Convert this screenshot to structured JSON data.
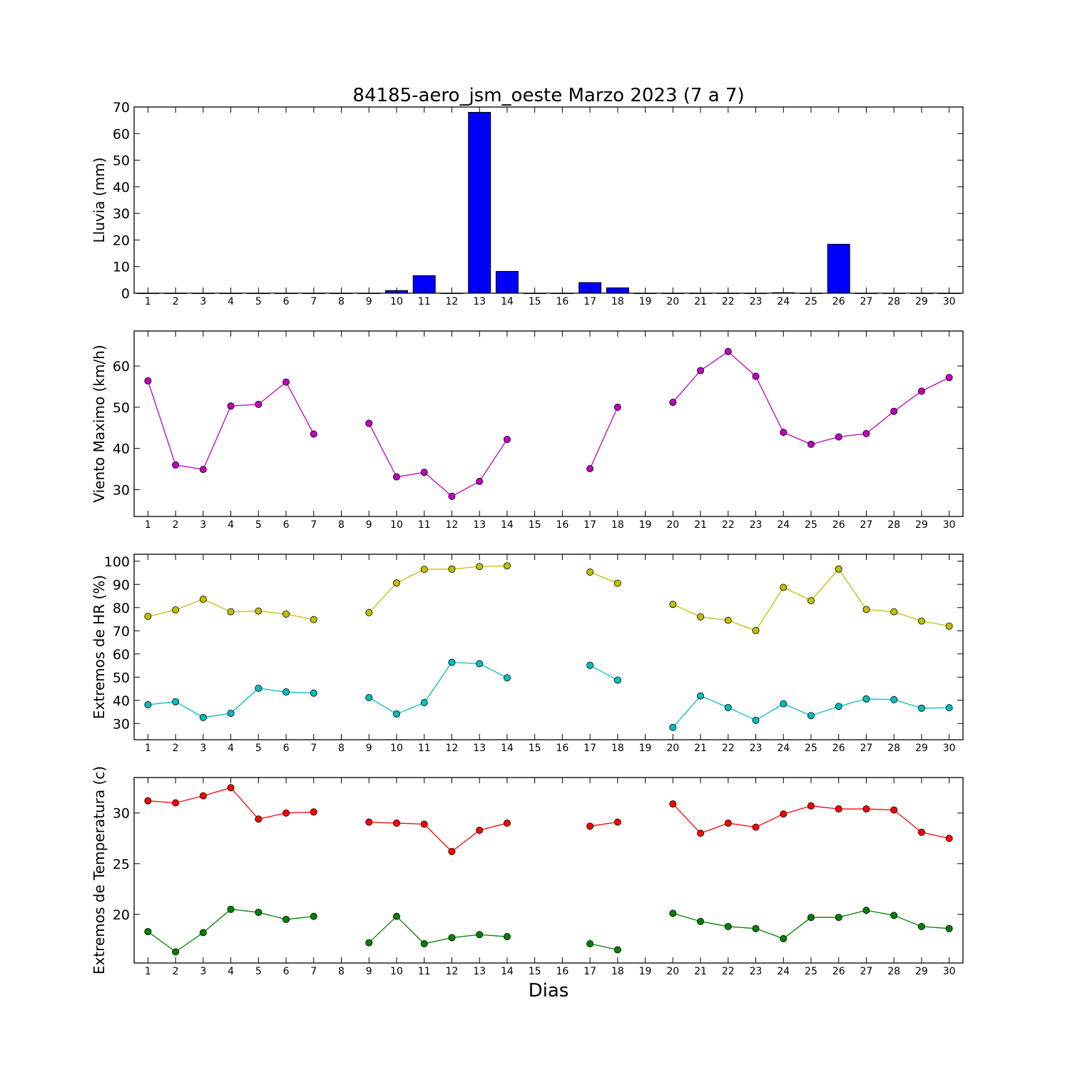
{
  "title": "84185-aero_jsm_oeste Marzo 2023  (7 a 7)",
  "xlabel": "Dias",
  "chart_data": [
    {
      "type": "bar",
      "ylabel": "Lluvia (mm)",
      "ylim": [
        0,
        70
      ],
      "yticks": [
        0,
        10,
        20,
        30,
        40,
        50,
        60,
        70
      ],
      "x": [
        1,
        2,
        3,
        4,
        5,
        6,
        7,
        8,
        9,
        10,
        11,
        12,
        13,
        14,
        15,
        16,
        17,
        18,
        19,
        20,
        21,
        22,
        23,
        24,
        25,
        26,
        27,
        28,
        29,
        30
      ],
      "series": [
        {
          "color": "#0000ff",
          "values": [
            0,
            0,
            0,
            0,
            0,
            0,
            0,
            0,
            0,
            1.0,
            6.6,
            0,
            68.0,
            8.2,
            0,
            0,
            4.0,
            2.0,
            0,
            0,
            0,
            0,
            0,
            0.2,
            0,
            18.4,
            0,
            0,
            0,
            0
          ]
        }
      ]
    },
    {
      "type": "line",
      "ylabel": "Viento Maximo (km/h)",
      "ylim": [
        23.5,
        68.5
      ],
      "yticks": [
        30,
        40,
        50,
        60
      ],
      "x": [
        1,
        2,
        3,
        4,
        5,
        6,
        7,
        8,
        9,
        10,
        11,
        12,
        13,
        14,
        15,
        16,
        17,
        18,
        19,
        20,
        21,
        22,
        23,
        24,
        25,
        26,
        27,
        28,
        29,
        30
      ],
      "series": [
        {
          "color": "#bf00bf",
          "values": [
            56.4,
            36.0,
            34.9,
            50.3,
            50.7,
            56.1,
            43.5,
            null,
            46.1,
            33.1,
            34.2,
            28.4,
            32.0,
            42.2,
            null,
            null,
            35.1,
            50.0,
            null,
            51.2,
            58.9,
            63.5,
            57.5,
            43.9,
            41.0,
            42.8,
            43.6,
            49.0,
            53.9,
            57.2
          ]
        }
      ]
    },
    {
      "type": "line",
      "ylabel": "Extremos de HR (%)",
      "ylim": [
        23,
        103
      ],
      "yticks": [
        30,
        40,
        50,
        60,
        70,
        80,
        90,
        100
      ],
      "x": [
        1,
        2,
        3,
        4,
        5,
        6,
        7,
        8,
        9,
        10,
        11,
        12,
        13,
        14,
        15,
        16,
        17,
        18,
        19,
        20,
        21,
        22,
        23,
        24,
        25,
        26,
        27,
        28,
        29,
        30
      ],
      "series": [
        {
          "color": "#bfbf00",
          "values": [
            76.2,
            79.0,
            83.6,
            78.2,
            78.5,
            77.2,
            74.8,
            null,
            77.8,
            90.6,
            96.5,
            96.6,
            97.7,
            98.0,
            null,
            null,
            95.3,
            90.5,
            null,
            81.4,
            76.0,
            74.5,
            70.1,
            88.7,
            83.0,
            96.6,
            79.2,
            78.2,
            74.2,
            72.0
          ]
        },
        {
          "color": "#00bfbf",
          "values": [
            38.1,
            39.4,
            32.6,
            34.4,
            45.2,
            43.6,
            43.1,
            null,
            41.2,
            34.1,
            39.0,
            56.4,
            55.8,
            49.7,
            null,
            null,
            55.1,
            48.7,
            null,
            28.3,
            41.9,
            36.9,
            31.4,
            38.5,
            33.4,
            37.4,
            40.6,
            40.3,
            36.6,
            36.8
          ]
        }
      ]
    },
    {
      "type": "line",
      "ylabel": "Extremos de Temperatura (c)",
      "ylim": [
        15.2,
        33.5
      ],
      "yticks": [
        20,
        25,
        30
      ],
      "x": [
        1,
        2,
        3,
        4,
        5,
        6,
        7,
        8,
        9,
        10,
        11,
        12,
        13,
        14,
        15,
        16,
        17,
        18,
        19,
        20,
        21,
        22,
        23,
        24,
        25,
        26,
        27,
        28,
        29,
        30
      ],
      "series": [
        {
          "color": "#ff0000",
          "values": [
            31.2,
            31.0,
            31.7,
            32.5,
            29.4,
            30.0,
            30.1,
            null,
            29.1,
            29.0,
            28.9,
            26.2,
            28.3,
            29.0,
            null,
            null,
            28.7,
            29.1,
            null,
            30.9,
            28.0,
            29.0,
            28.6,
            29.9,
            30.7,
            30.4,
            30.4,
            30.3,
            28.1,
            27.5
          ]
        },
        {
          "color": "#008000",
          "values": [
            18.3,
            16.3,
            18.2,
            20.5,
            20.2,
            19.5,
            19.8,
            null,
            17.2,
            19.8,
            17.1,
            17.7,
            18.0,
            17.8,
            null,
            null,
            17.1,
            16.5,
            null,
            20.1,
            19.3,
            18.8,
            18.6,
            17.6,
            19.7,
            19.7,
            20.4,
            19.9,
            18.8,
            18.6
          ]
        }
      ]
    }
  ]
}
